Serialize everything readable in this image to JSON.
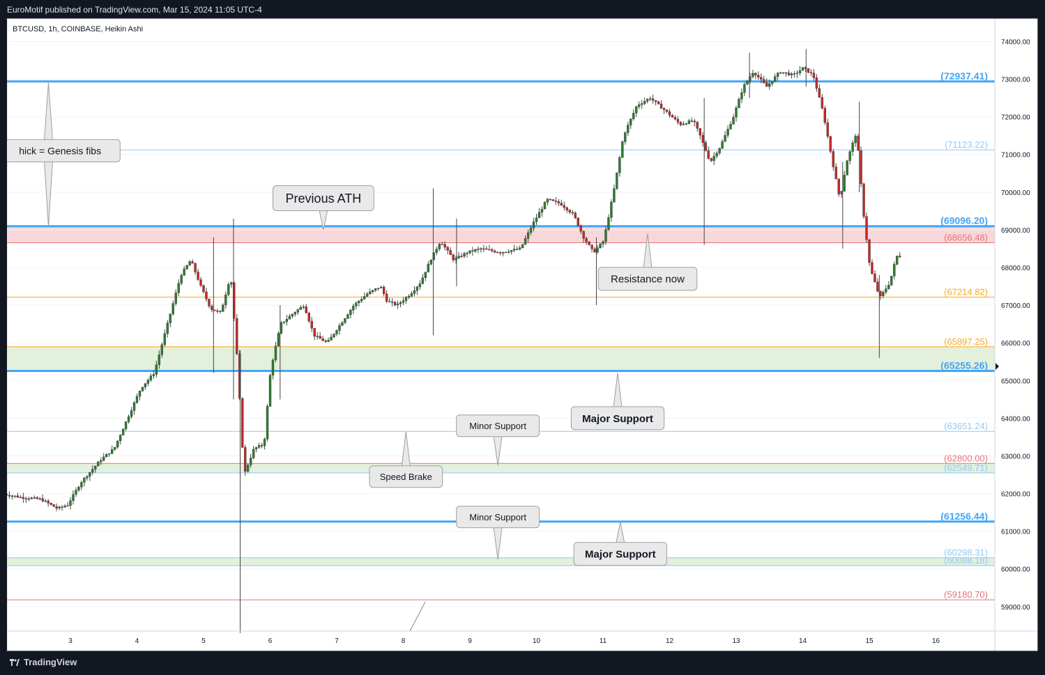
{
  "header": {
    "publisher_line": "EuroMotif published on TradingView.com, Mar 15, 2024 11:05 UTC-4"
  },
  "footer": {
    "brand": "TradingView"
  },
  "chart_data": {
    "type": "candlestick",
    "title": "BTCUSD, 1h, COINBASE, Heikin Ashi",
    "ylim": [
      58350,
      74600
    ],
    "y_ticks": [
      "74000.00",
      "73000.00",
      "72000.00",
      "71000.00",
      "70000.00",
      "69000.00",
      "68000.00",
      "67000.00",
      "66000.00",
      "65000.00",
      "64000.00",
      "63000.00",
      "62000.00",
      "61000.00",
      "60000.00",
      "59000.00"
    ],
    "x_ticks": [
      "3",
      "4",
      "5",
      "6",
      "7",
      "8",
      "9",
      "10",
      "11",
      "12",
      "13",
      "14",
      "15",
      "16"
    ],
    "x_tick_positions": [
      3,
      4,
      5,
      6,
      7,
      8,
      9,
      10,
      11,
      12,
      13,
      14,
      15,
      16
    ],
    "colors": {
      "up": "#26a69a",
      "up_body": "#2e7d32",
      "down": "#c62828",
      "wick": "#555555",
      "bg": "#ffffff",
      "grid": "#f0f3fa"
    },
    "levels": [
      {
        "value": 72937.41,
        "label": "(72937.41)",
        "color": "#42a5f5",
        "width": 3,
        "bold": true
      },
      {
        "value": 71123.22,
        "label": "(71123.22)",
        "color": "#90caf9",
        "width": 1,
        "bold": false
      },
      {
        "value": 69096.2,
        "label": "(69096.20)",
        "color": "#42a5f5",
        "width": 3,
        "bold": false
      },
      {
        "value": 68656.48,
        "label": "(68656.48)",
        "color": "#e57373",
        "width": 1,
        "bold": false
      },
      {
        "value": 67214.82,
        "label": "(67214.82)",
        "color": "#f9a825",
        "width": 1,
        "bold": false
      },
      {
        "value": 65897.25,
        "label": "(65897.25)",
        "color": "#f9a825",
        "width": 1,
        "bold": false
      },
      {
        "value": 65255.26,
        "label": "(65255.26)",
        "color": "#42a5f5",
        "width": 3,
        "bold": true
      },
      {
        "value": 63651.24,
        "label": "(63651.24)",
        "color": "#90caf9",
        "width": 1,
        "bold": false
      },
      {
        "value": 62800.0,
        "label": "(62800.00)",
        "color": "#e57373",
        "width": 1,
        "bold": false
      },
      {
        "value": 62549.71,
        "label": "(62549.71)",
        "color": "#90caf9",
        "width": 1,
        "bold": false
      },
      {
        "value": 61256.44,
        "label": "(61256.44)",
        "color": "#42a5f5",
        "width": 3,
        "bold": false
      },
      {
        "value": 60298.31,
        "label": "(60298.31)",
        "color": "#90caf9",
        "width": 1,
        "bold": false
      },
      {
        "value": 60088.18,
        "label": "(60088.18)",
        "color": "#90caf9",
        "width": 1,
        "bold": false
      },
      {
        "value": 59180.7,
        "label": "(59180.70)",
        "color": "#e57373",
        "width": 1,
        "bold": false
      }
    ],
    "zones": [
      {
        "from": 68656.48,
        "to": 69096.2,
        "color": "#f8d7da"
      },
      {
        "from": 65255.26,
        "to": 65897.25,
        "color": "#e2f0dc"
      },
      {
        "from": 62549.71,
        "to": 62800.0,
        "color": "#e2f0dc"
      },
      {
        "from": 60088.18,
        "to": 60298.31,
        "color": "#e2f0dc"
      }
    ],
    "annotations": [
      {
        "text": "Previous ATH",
        "day": 6.8,
        "value": 69840,
        "pointer_day": 6.8,
        "pointer_value": 69000,
        "size": 18,
        "bold": false,
        "dir": "down"
      },
      {
        "text": "hick = Genesis fibs",
        "day": 2.4,
        "value": 71100,
        "pointer_day": 2.67,
        "pointer_value": 69096,
        "size": 14,
        "bold": false,
        "dir": "updown",
        "up_value": 72900
      },
      {
        "text": "Resistance now",
        "day": 11.67,
        "value": 67700,
        "pointer_day": 11.67,
        "pointer_value": 68900,
        "size": 15,
        "bold": false,
        "dir": "up"
      },
      {
        "text": "Major Support",
        "day": 11.22,
        "value": 64000,
        "pointer_day": 11.22,
        "pointer_value": 65200,
        "size": 15,
        "bold": true,
        "dir": "up"
      },
      {
        "text": "Minor Support",
        "day": 9.42,
        "value": 63800,
        "pointer_day": 9.42,
        "pointer_value": 62750,
        "size": 13,
        "bold": false,
        "dir": "down"
      },
      {
        "text": "Speed Brake",
        "day": 8.04,
        "value": 62450,
        "pointer_day": 8.04,
        "pointer_value": 63650,
        "size": 13,
        "bold": false,
        "dir": "up"
      },
      {
        "text": "Minor Support",
        "day": 9.42,
        "value": 61380,
        "pointer_day": 9.42,
        "pointer_value": 60250,
        "size": 13,
        "bold": false,
        "dir": "down"
      },
      {
        "text": "Major Support",
        "day": 11.26,
        "value": 60400,
        "pointer_day": 11.26,
        "pointer_value": 61250,
        "size": 15,
        "bold": true,
        "dir": "up"
      }
    ],
    "waypoints": [
      [
        2.0,
        62000
      ],
      [
        2.3,
        61900
      ],
      [
        2.6,
        61850
      ],
      [
        2.85,
        61600
      ],
      [
        3.0,
        61700
      ],
      [
        3.2,
        62300
      ],
      [
        3.5,
        62900
      ],
      [
        3.7,
        63200
      ],
      [
        3.95,
        64200
      ],
      [
        4.1,
        64800
      ],
      [
        4.3,
        65200
      ],
      [
        4.5,
        66500
      ],
      [
        4.7,
        67800
      ],
      [
        4.85,
        68200
      ],
      [
        5.0,
        67500
      ],
      [
        5.15,
        66900
      ],
      [
        5.3,
        66800
      ],
      [
        5.45,
        67800
      ],
      [
        5.55,
        65500
      ],
      [
        5.65,
        62500
      ],
      [
        5.8,
        63200
      ],
      [
        5.95,
        63300
      ],
      [
        6.05,
        65300
      ],
      [
        6.2,
        66500
      ],
      [
        6.4,
        66800
      ],
      [
        6.55,
        67000
      ],
      [
        6.7,
        66200
      ],
      [
        6.9,
        66000
      ],
      [
        7.1,
        66500
      ],
      [
        7.3,
        67000
      ],
      [
        7.5,
        67300
      ],
      [
        7.7,
        67500
      ],
      [
        7.8,
        67100
      ],
      [
        7.95,
        67000
      ],
      [
        8.15,
        67300
      ],
      [
        8.3,
        67600
      ],
      [
        8.45,
        68200
      ],
      [
        8.6,
        68700
      ],
      [
        8.8,
        68200
      ],
      [
        9.0,
        68400
      ],
      [
        9.2,
        68500
      ],
      [
        9.5,
        68400
      ],
      [
        9.8,
        68500
      ],
      [
        10.0,
        69200
      ],
      [
        10.2,
        69800
      ],
      [
        10.4,
        69700
      ],
      [
        10.6,
        69400
      ],
      [
        10.75,
        68800
      ],
      [
        10.9,
        68400
      ],
      [
        11.05,
        68700
      ],
      [
        11.2,
        70000
      ],
      [
        11.35,
        71500
      ],
      [
        11.55,
        72300
      ],
      [
        11.75,
        72500
      ],
      [
        11.95,
        72200
      ],
      [
        12.2,
        71800
      ],
      [
        12.4,
        71900
      ],
      [
        12.5,
        71500
      ],
      [
        12.65,
        70800
      ],
      [
        12.8,
        71200
      ],
      [
        13.0,
        72000
      ],
      [
        13.15,
        72800
      ],
      [
        13.3,
        73200
      ],
      [
        13.5,
        72800
      ],
      [
        13.7,
        73200
      ],
      [
        13.9,
        73100
      ],
      [
        14.05,
        73300
      ],
      [
        14.2,
        73100
      ],
      [
        14.35,
        72100
      ],
      [
        14.5,
        70700
      ],
      [
        14.6,
        69800
      ],
      [
        14.7,
        70800
      ],
      [
        14.85,
        71600
      ],
      [
        14.95,
        69500
      ],
      [
        15.05,
        68000
      ],
      [
        15.2,
        67200
      ],
      [
        15.35,
        67600
      ],
      [
        15.45,
        68300
      ]
    ],
    "extremes": [
      [
        5.55,
        58300,
        65800
      ],
      [
        5.45,
        69300,
        64500
      ],
      [
        8.45,
        70100,
        66200
      ],
      [
        8.8,
        69300,
        67500
      ],
      [
        10.9,
        67000,
        68800
      ],
      [
        12.52,
        68600,
        72500
      ],
      [
        13.2,
        73700,
        72500
      ],
      [
        14.05,
        73800,
        72800
      ],
      [
        14.6,
        68500,
        70800
      ],
      [
        15.15,
        65600,
        67800
      ],
      [
        14.85,
        72400,
        70000
      ],
      [
        5.15,
        68800,
        65200
      ],
      [
        6.15,
        64500,
        67000
      ]
    ]
  }
}
